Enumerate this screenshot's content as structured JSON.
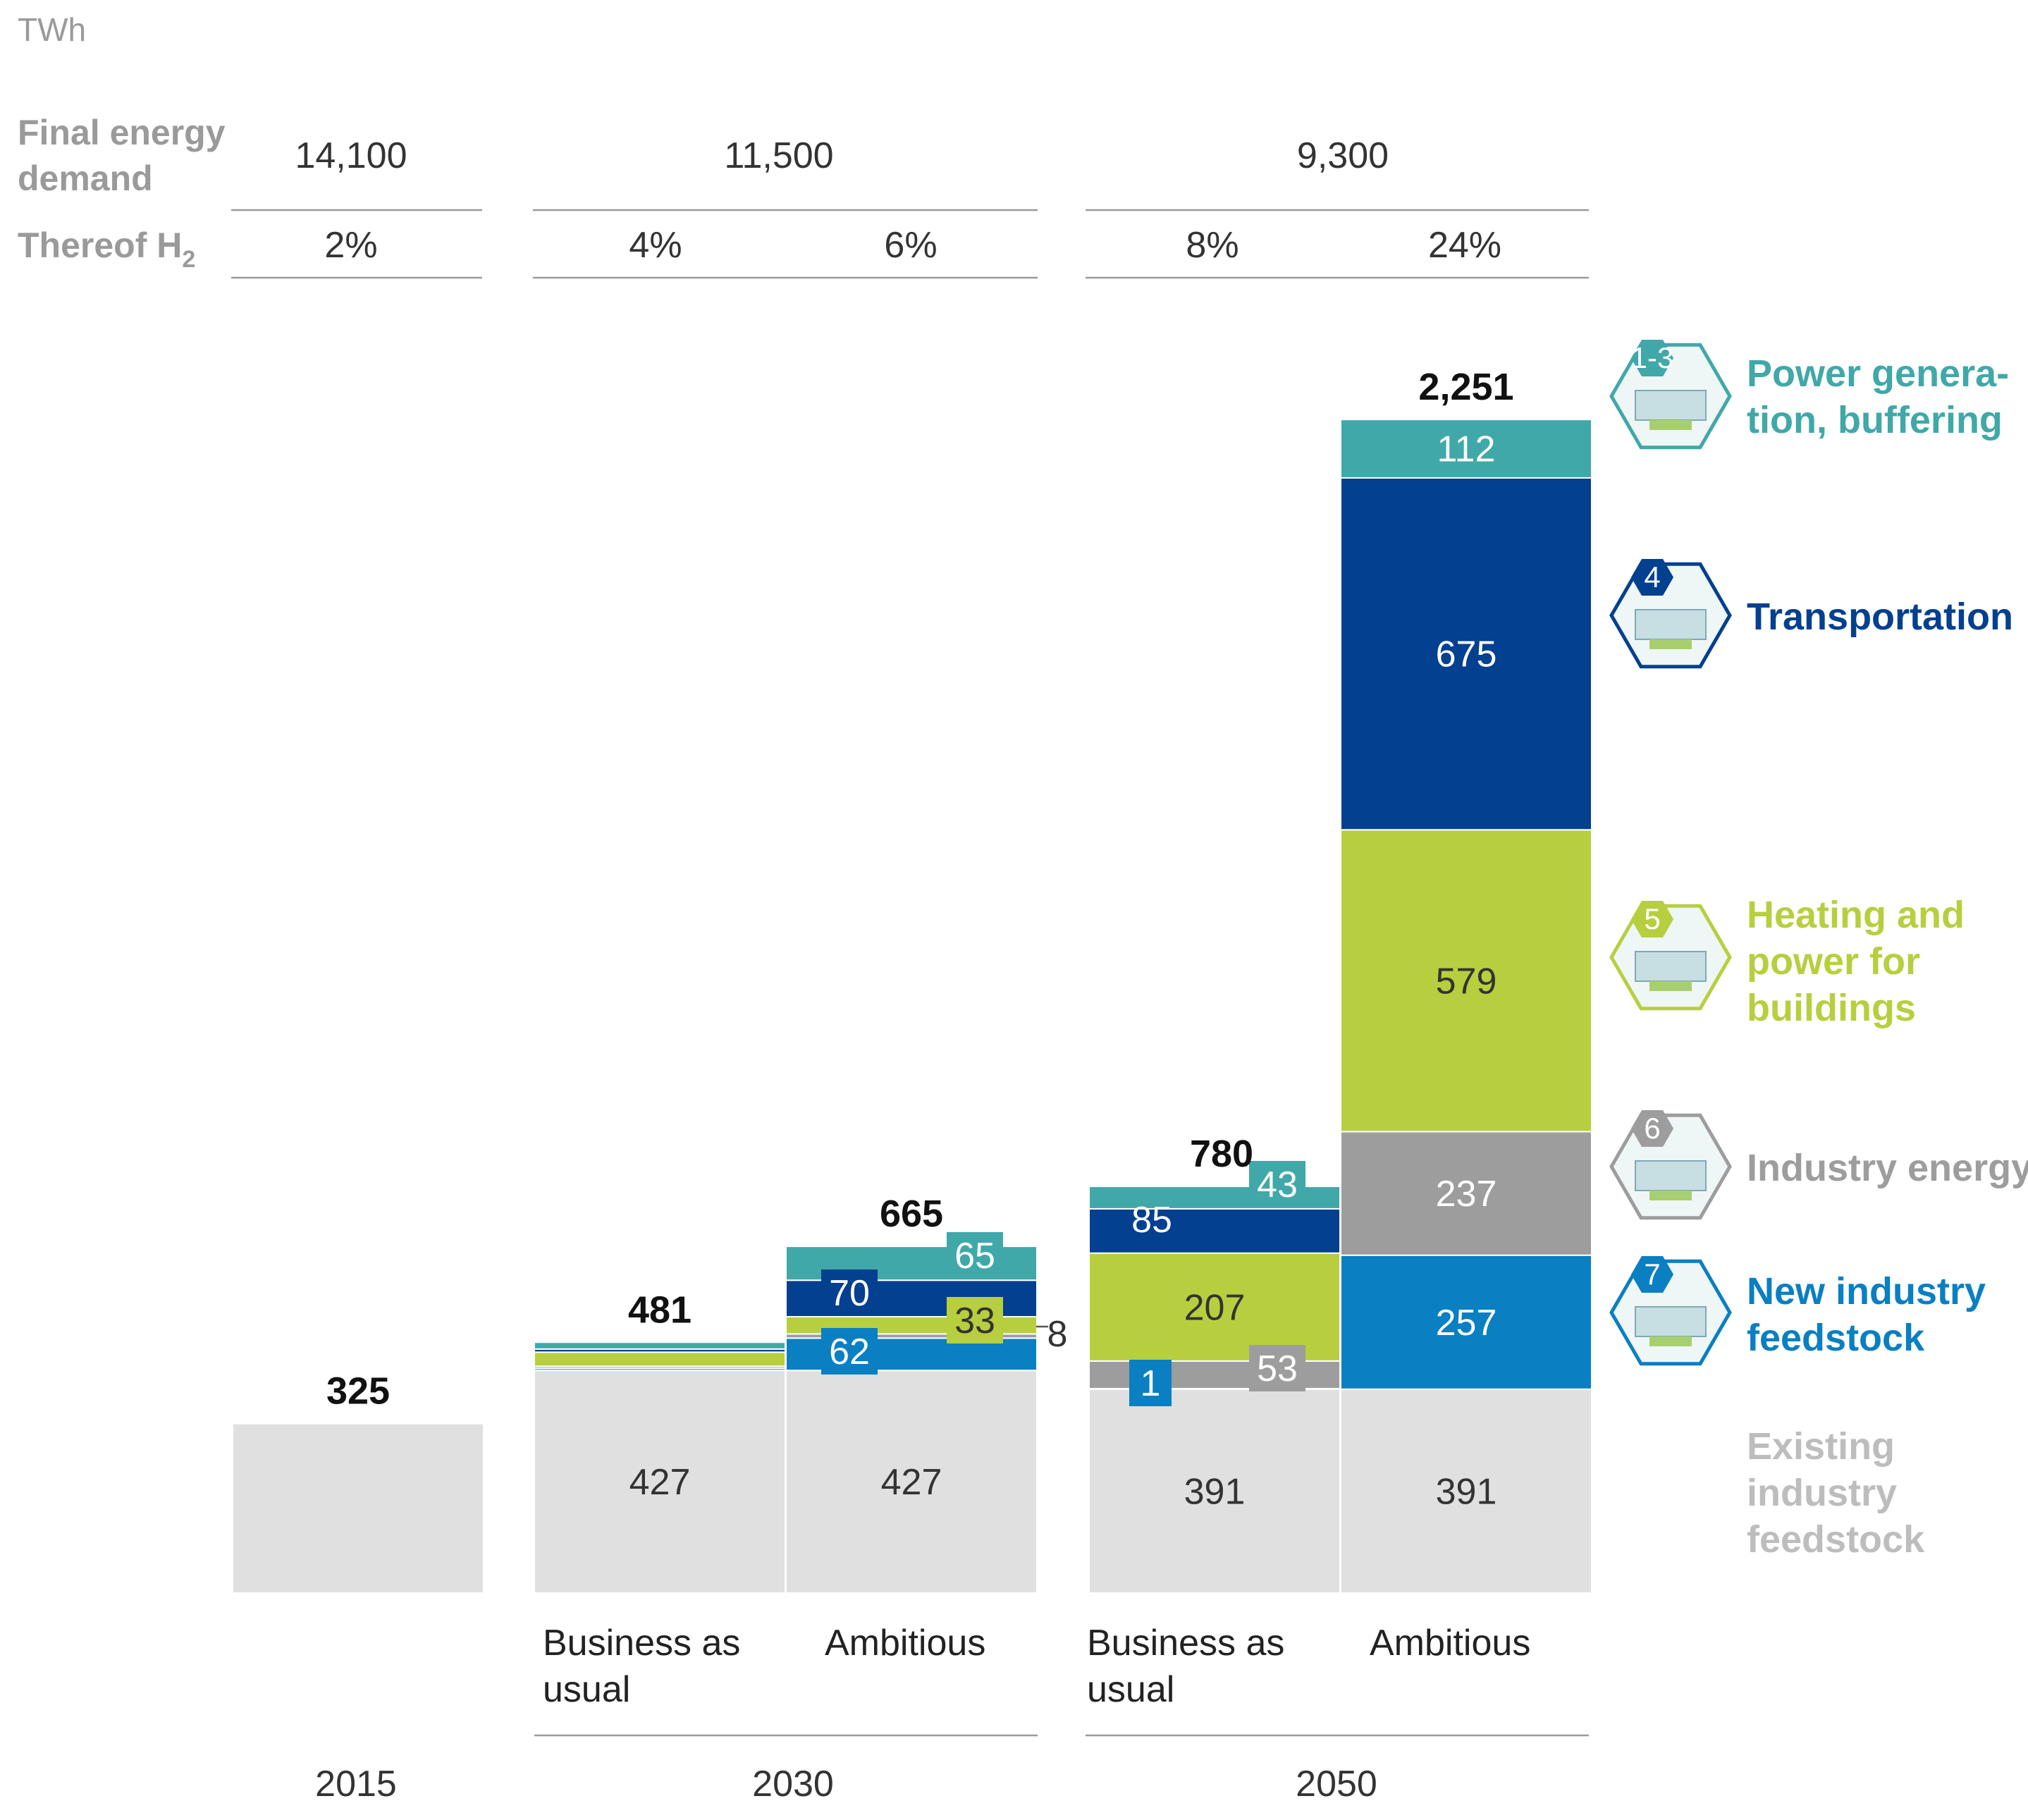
{
  "chart_data": {
    "type": "bar",
    "stacked": true,
    "unit": "TWh",
    "header": {
      "final_energy_label_line1": "Final energy",
      "final_energy_label_line2": "demand",
      "thereof_label": "Thereof H",
      "thereof_subscript": "2",
      "final_energy_values": [
        "14,100",
        "11,500",
        "9,300"
      ],
      "h2_share_values": [
        "2%",
        "4%",
        "6%",
        "8%",
        "24%"
      ]
    },
    "years": [
      "2015",
      "2030",
      "2050"
    ],
    "scenario_labels": {
      "bau_line1": "Business as",
      "bau_line2": "usual",
      "ambitious": "Ambitious"
    },
    "series": [
      {
        "key": "existing",
        "name_lines": [
          "Existing",
          "industry",
          "feedstock"
        ],
        "color": "#e0e0e0",
        "text_color": "#333333",
        "icon_number": ""
      },
      {
        "key": "new_feedstock",
        "name_lines": [
          "New industry",
          "feedstock"
        ],
        "color": "#0a7fc2",
        "text_color": "#ffffff",
        "icon_number": "7"
      },
      {
        "key": "industry_energy",
        "name_lines": [
          "Industry energy"
        ],
        "color": "#9d9d9d",
        "text_color": "#ffffff",
        "icon_number": "6"
      },
      {
        "key": "buildings",
        "name_lines": [
          "Heating and",
          "power for",
          "buildings"
        ],
        "color": "#b7cf3f",
        "text_color": "#333333",
        "icon_number": "5"
      },
      {
        "key": "transport",
        "name_lines": [
          "Transportation"
        ],
        "color": "#03408f",
        "text_color": "#ffffff",
        "icon_number": "4"
      },
      {
        "key": "power",
        "name_lines": [
          "Power genera-",
          "tion, buffering"
        ],
        "color": "#40a8a8",
        "text_color": "#ffffff",
        "icon_number": "1-3"
      }
    ],
    "bars": [
      {
        "year": "2015",
        "scenario": "",
        "total": 325,
        "total_label": "325",
        "values": {
          "existing": 325,
          "new_feedstock": 0,
          "industry_energy": 0,
          "buildings": 0,
          "transport": 0,
          "power": 0
        },
        "value_labels": {}
      },
      {
        "year": "2030",
        "scenario": "Business as usual",
        "total": 481,
        "total_label": "481",
        "values": {
          "existing": 427,
          "new_feedstock": 4,
          "industry_energy": 4,
          "buildings": 27,
          "transport": 6,
          "power": 13
        },
        "value_labels": {
          "existing": "427"
        }
      },
      {
        "year": "2030",
        "scenario": "Ambitious",
        "total": 665,
        "total_label": "665",
        "values": {
          "existing": 427,
          "new_feedstock": 62,
          "industry_energy": 8,
          "buildings": 33,
          "transport": 70,
          "power": 65
        },
        "value_labels": {
          "existing": "427",
          "new_feedstock": "62",
          "industry_energy": "8",
          "buildings": "33",
          "transport": "70",
          "power": "65"
        }
      },
      {
        "year": "2050",
        "scenario": "Business as usual",
        "total": 780,
        "total_label": "780",
        "values": {
          "existing": 391,
          "new_feedstock": 1,
          "industry_energy": 53,
          "buildings": 207,
          "transport": 85,
          "power": 43
        },
        "value_labels": {
          "existing": "391",
          "new_feedstock": "1",
          "industry_energy": "53",
          "buildings": "207",
          "transport": "85",
          "power": "43"
        }
      },
      {
        "year": "2050",
        "scenario": "Ambitious",
        "total": 2251,
        "total_label": "2,251",
        "values": {
          "existing": 391,
          "new_feedstock": 257,
          "industry_energy": 237,
          "buildings": 579,
          "transport": 675,
          "power": 112
        },
        "value_labels": {
          "existing": "391",
          "new_feedstock": "257",
          "industry_energy": "237",
          "buildings": "579",
          "transport": "675",
          "power": "112"
        }
      }
    ]
  }
}
